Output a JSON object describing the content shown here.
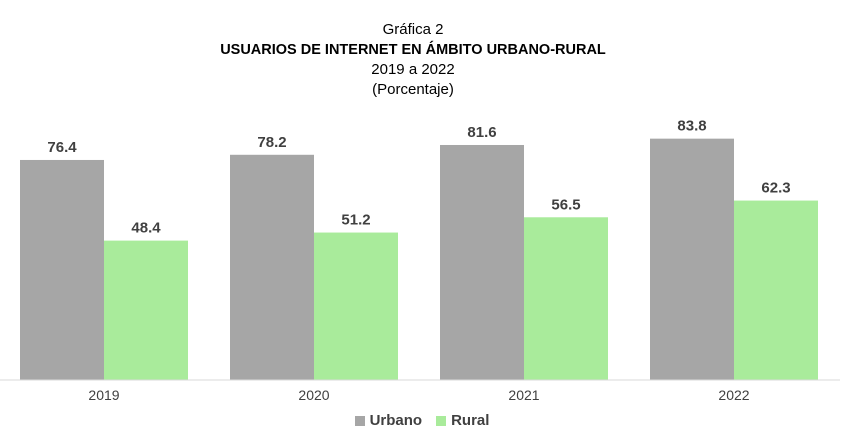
{
  "header": {
    "caption": "Gráfica 2",
    "title": "USUARIOS DE INTERNET EN ÁMBITO URBANO-RURAL",
    "period": "2019 a 2022",
    "unit": "(Porcentaje)"
  },
  "colors": {
    "urbano": "#a6a6a6",
    "rural": "#a9eb9b",
    "axis": "#d9d9d9",
    "label": "#404040"
  },
  "chart_data": {
    "type": "bar",
    "title": "USUARIOS DE INTERNET EN ÁMBITO URBANO-RURAL",
    "subtitle": "2019 a 2022 (Porcentaje)",
    "categories": [
      "2019",
      "2020",
      "2021",
      "2022"
    ],
    "series": [
      {
        "name": "Urbano",
        "values": [
          76.4,
          78.2,
          81.6,
          83.8
        ]
      },
      {
        "name": "Rural",
        "values": [
          48.4,
          51.2,
          56.5,
          62.3
        ]
      }
    ],
    "ylim": [
      0,
      100
    ],
    "grid": false,
    "legend": "bottom",
    "data_labels": true
  }
}
